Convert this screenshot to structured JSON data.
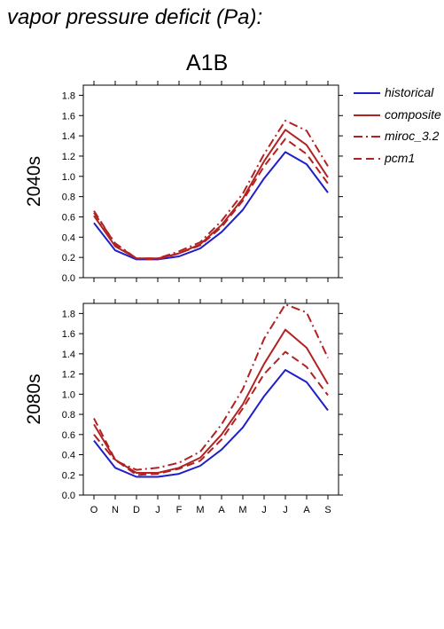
{
  "figure": {
    "title": "vapor pressure deficit (Pa):"
  },
  "chart_data": [
    {
      "type": "line",
      "title": "A1B",
      "ylabel": "2040s",
      "xlabel": "",
      "categories": [
        "O",
        "N",
        "D",
        "J",
        "F",
        "M",
        "A",
        "M",
        "J",
        "J",
        "A",
        "S"
      ],
      "yticks": [
        "0.0",
        "0.2",
        "0.4",
        "0.6",
        "0.8",
        "1.0",
        "1.2",
        "1.4",
        "1.6",
        "1.8"
      ],
      "ylim": [
        0,
        1.9
      ],
      "grid": false,
      "legend_position": "right",
      "series": [
        {
          "name": "historical",
          "color": "#1f1fc8",
          "dash": "solid",
          "values": [
            0.54,
            0.27,
            0.18,
            0.18,
            0.21,
            0.29,
            0.45,
            0.67,
            0.98,
            1.24,
            1.12,
            0.84
          ]
        },
        {
          "name": "composite",
          "color": "#b22222",
          "dash": "solid",
          "values": [
            0.61,
            0.31,
            0.19,
            0.19,
            0.24,
            0.33,
            0.52,
            0.78,
            1.15,
            1.46,
            1.31,
            0.99
          ]
        },
        {
          "name": "miroc_3.2",
          "color": "#b22222",
          "dash": "dashdot",
          "values": [
            0.64,
            0.34,
            0.19,
            0.19,
            0.26,
            0.35,
            0.56,
            0.83,
            1.22,
            1.55,
            1.45,
            1.1
          ]
        },
        {
          "name": "pcm1",
          "color": "#b22222",
          "dash": "dash",
          "values": [
            0.66,
            0.33,
            0.19,
            0.18,
            0.24,
            0.32,
            0.5,
            0.76,
            1.1,
            1.37,
            1.22,
            0.93
          ]
        }
      ]
    },
    {
      "type": "line",
      "title": "",
      "ylabel": "2080s",
      "xlabel": "",
      "categories": [
        "O",
        "N",
        "D",
        "J",
        "F",
        "M",
        "A",
        "M",
        "J",
        "J",
        "A",
        "S"
      ],
      "xticklabels": [
        "O",
        "N",
        "D",
        "J",
        "F",
        "M",
        "A",
        "M",
        "J",
        "J",
        "A",
        "S"
      ],
      "yticks": [
        "0.0",
        "0.2",
        "0.4",
        "0.6",
        "0.8",
        "1.0",
        "1.2",
        "1.4",
        "1.6",
        "1.8"
      ],
      "ylim": [
        0,
        1.9
      ],
      "grid": false,
      "series": [
        {
          "name": "historical",
          "color": "#1f1fc8",
          "dash": "solid",
          "values": [
            0.54,
            0.27,
            0.18,
            0.18,
            0.21,
            0.29,
            0.45,
            0.67,
            0.98,
            1.24,
            1.12,
            0.84
          ]
        },
        {
          "name": "composite",
          "color": "#b22222",
          "dash": "solid",
          "values": [
            0.7,
            0.35,
            0.22,
            0.22,
            0.27,
            0.37,
            0.6,
            0.9,
            1.3,
            1.64,
            1.46,
            1.1
          ]
        },
        {
          "name": "miroc_3.2",
          "color": "#b22222",
          "dash": "dashdot",
          "values": [
            0.6,
            0.34,
            0.25,
            0.27,
            0.32,
            0.43,
            0.7,
            1.05,
            1.55,
            1.89,
            1.81,
            1.36
          ]
        },
        {
          "name": "pcm1",
          "color": "#b22222",
          "dash": "dash",
          "values": [
            0.76,
            0.35,
            0.2,
            0.21,
            0.26,
            0.34,
            0.55,
            0.86,
            1.2,
            1.42,
            1.27,
            0.99
          ]
        }
      ]
    }
  ]
}
